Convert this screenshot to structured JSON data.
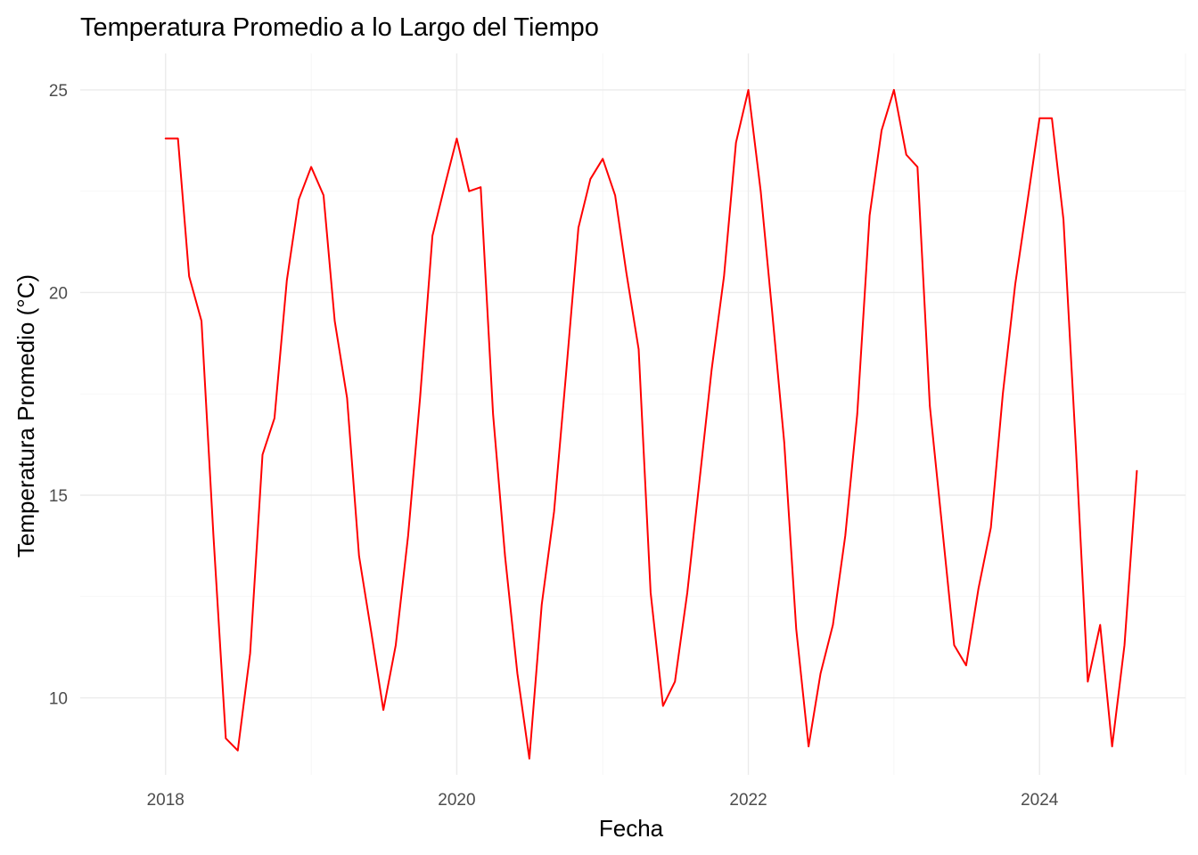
{
  "chart_data": {
    "type": "line",
    "title": "Temperatura Promedio a lo Largo del Tiempo",
    "xlabel": "Fecha",
    "ylabel": "Temperatura Promedio (°C)",
    "xlim": [
      "2017-06-01",
      "2025-01-01"
    ],
    "ylim": [
      8.1,
      25.9
    ],
    "x_ticks": [
      {
        "label": "2018",
        "date": "2018-01-01"
      },
      {
        "label": "2020",
        "date": "2020-01-01"
      },
      {
        "label": "2022",
        "date": "2022-01-01"
      },
      {
        "label": "2024",
        "date": "2024-01-01"
      }
    ],
    "y_ticks": [
      10,
      15,
      20,
      25
    ],
    "grid": true,
    "legend": "none",
    "series": [
      {
        "color": "#ff0000",
        "points": [
          [
            "2018-01-01",
            23.8
          ],
          [
            "2018-02-01",
            23.8
          ],
          [
            "2018-03-01",
            20.4
          ],
          [
            "2018-04-01",
            19.3
          ],
          [
            "2018-05-01",
            14.0
          ],
          [
            "2018-06-01",
            9.0
          ],
          [
            "2018-07-01",
            8.7
          ],
          [
            "2018-08-01",
            11.1
          ],
          [
            "2018-09-01",
            16.0
          ],
          [
            "2018-10-01",
            16.9
          ],
          [
            "2018-11-01",
            20.3
          ],
          [
            "2018-12-01",
            22.3
          ],
          [
            "2019-01-01",
            23.1
          ],
          [
            "2019-02-01",
            22.4
          ],
          [
            "2019-03-01",
            19.3
          ],
          [
            "2019-04-01",
            17.4
          ],
          [
            "2019-05-01",
            13.5
          ],
          [
            "2019-06-01",
            11.6
          ],
          [
            "2019-07-01",
            9.7
          ],
          [
            "2019-08-01",
            11.3
          ],
          [
            "2019-09-01",
            14.0
          ],
          [
            "2019-10-01",
            17.4
          ],
          [
            "2019-11-01",
            21.4
          ],
          [
            "2019-12-01",
            22.6
          ],
          [
            "2020-01-01",
            23.8
          ],
          [
            "2020-02-01",
            22.5
          ],
          [
            "2020-03-01",
            22.6
          ],
          [
            "2020-04-01",
            17.0
          ],
          [
            "2020-05-01",
            13.5
          ],
          [
            "2020-06-01",
            10.6
          ],
          [
            "2020-07-01",
            8.5
          ],
          [
            "2020-08-01",
            12.3
          ],
          [
            "2020-09-01",
            14.6
          ],
          [
            "2020-10-01",
            18.0
          ],
          [
            "2020-11-01",
            21.6
          ],
          [
            "2020-12-01",
            22.8
          ],
          [
            "2021-01-01",
            23.3
          ],
          [
            "2021-02-01",
            22.4
          ],
          [
            "2021-03-01",
            20.5
          ],
          [
            "2021-04-01",
            18.6
          ],
          [
            "2021-05-01",
            12.6
          ],
          [
            "2021-06-01",
            9.8
          ],
          [
            "2021-07-01",
            10.4
          ],
          [
            "2021-08-01",
            12.6
          ],
          [
            "2021-09-01",
            15.4
          ],
          [
            "2021-10-01",
            18.1
          ],
          [
            "2021-11-01",
            20.4
          ],
          [
            "2021-12-01",
            23.7
          ],
          [
            "2022-01-01",
            25.0
          ],
          [
            "2022-02-01",
            22.5
          ],
          [
            "2022-03-01",
            19.6
          ],
          [
            "2022-04-01",
            16.3
          ],
          [
            "2022-05-01",
            11.7
          ],
          [
            "2022-06-01",
            8.8
          ],
          [
            "2022-07-01",
            10.6
          ],
          [
            "2022-08-01",
            11.8
          ],
          [
            "2022-09-01",
            14.0
          ],
          [
            "2022-10-01",
            17.0
          ],
          [
            "2022-11-01",
            21.9
          ],
          [
            "2022-12-01",
            24.0
          ],
          [
            "2023-01-01",
            25.0
          ],
          [
            "2023-02-01",
            23.4
          ],
          [
            "2023-03-01",
            23.1
          ],
          [
            "2023-04-01",
            17.2
          ],
          [
            "2023-05-01",
            14.3
          ],
          [
            "2023-06-01",
            11.3
          ],
          [
            "2023-07-01",
            10.8
          ],
          [
            "2023-08-01",
            12.7
          ],
          [
            "2023-09-01",
            14.2
          ],
          [
            "2023-10-01",
            17.5
          ],
          [
            "2023-11-01",
            20.2
          ],
          [
            "2023-12-01",
            22.2
          ],
          [
            "2024-01-01",
            24.3
          ],
          [
            "2024-02-01",
            24.3
          ],
          [
            "2024-03-01",
            21.8
          ],
          [
            "2024-04-01",
            16.2
          ],
          [
            "2024-05-01",
            10.4
          ],
          [
            "2024-06-01",
            11.8
          ],
          [
            "2024-07-01",
            8.8
          ],
          [
            "2024-08-01",
            11.3
          ],
          [
            "2024-09-01",
            15.6
          ]
        ]
      }
    ]
  }
}
